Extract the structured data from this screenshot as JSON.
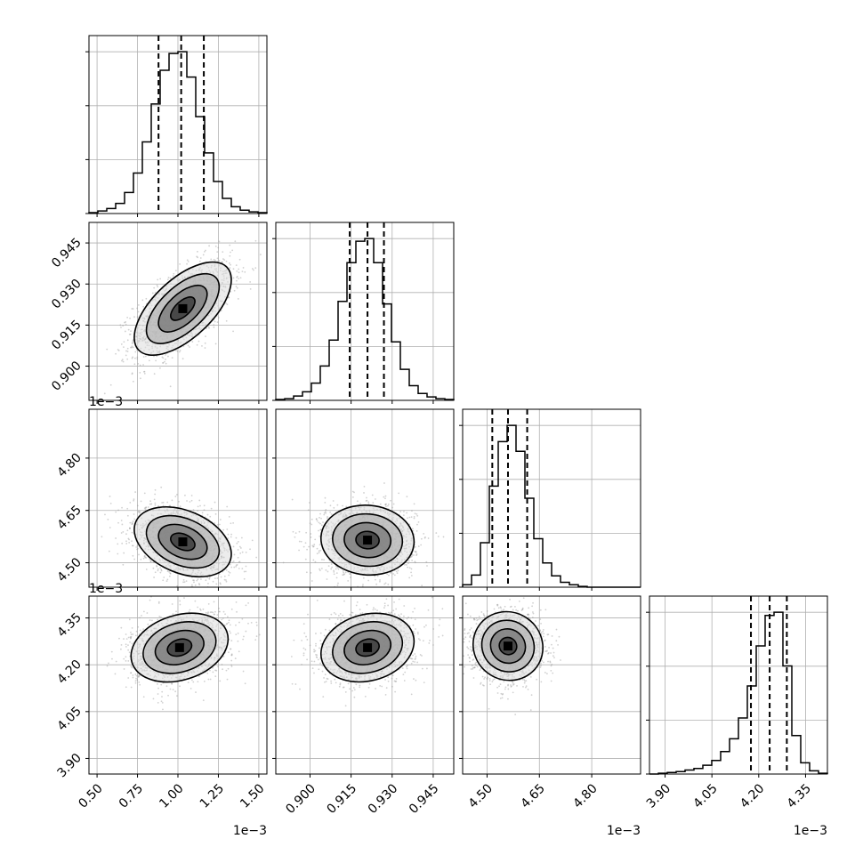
{
  "chart_data": {
    "type": "corner",
    "grid_shown": true,
    "diagonal_ticks_left_unlabeled": true,
    "parameters": [
      {
        "name": "",
        "range": [
          0.45,
          1.55
        ],
        "ticks": [
          0.5,
          0.75,
          1.0,
          1.25,
          1.5
        ],
        "tick_labels": [
          "0.50",
          "0.75",
          "1.00",
          "1.25",
          "1.50"
        ],
        "offset_label": "1e−3",
        "quantiles": [
          0.88,
          1.02,
          1.16
        ],
        "hist": {
          "bin_edges": [
            0.45,
            0.505,
            0.56,
            0.615,
            0.67,
            0.725,
            0.78,
            0.835,
            0.89,
            0.945,
            1.0,
            1.055,
            1.11,
            1.165,
            1.22,
            1.275,
            1.33,
            1.385,
            1.44,
            1.495,
            1.55
          ],
          "counts": [
            1,
            3,
            6,
            12,
            25,
            48,
            85,
            130,
            170,
            190,
            192,
            162,
            115,
            72,
            38,
            18,
            8,
            4,
            2,
            1
          ]
        }
      },
      {
        "name": "",
        "range": [
          0.8875,
          0.9525
        ],
        "ticks": [
          0.9,
          0.915,
          0.93,
          0.945
        ],
        "tick_labels": [
          "0.900",
          "0.915",
          "0.930",
          "0.945"
        ],
        "offset_label": "",
        "quantiles": [
          0.9145,
          0.921,
          0.927
        ],
        "hist": {
          "bin_edges": [
            0.8875,
            0.89075,
            0.894,
            0.89725,
            0.9005,
            0.90375,
            0.907,
            0.91025,
            0.9135,
            0.91675,
            0.92,
            0.92325,
            0.9265,
            0.92975,
            0.933,
            0.93625,
            0.9395,
            0.94275,
            0.946,
            0.94925,
            0.9525
          ],
          "counts": [
            1,
            2,
            5,
            10,
            20,
            40,
            70,
            115,
            160,
            185,
            188,
            160,
            112,
            68,
            36,
            17,
            8,
            4,
            2,
            1
          ]
        }
      },
      {
        "name": "",
        "range": [
          4.43,
          4.94
        ],
        "ticks": [
          4.5,
          4.65,
          4.8
        ],
        "tick_labels": [
          "4.50",
          "4.65",
          "4.80"
        ],
        "offset_label": "1e−3",
        "quantiles": [
          4.515,
          4.56,
          4.615
        ],
        "hist": {
          "bin_edges": [
            4.43,
            4.4555,
            4.481,
            4.5065,
            4.532,
            4.5575,
            4.583,
            4.6085,
            4.634,
            4.6595,
            4.685,
            4.7105,
            4.736,
            4.7615,
            4.787,
            4.8125,
            4.838,
            4.8635,
            4.889,
            4.9145,
            4.94
          ],
          "counts": [
            3,
            15,
            55,
            125,
            180,
            200,
            168,
            110,
            60,
            30,
            14,
            6,
            3,
            1,
            0,
            0,
            0,
            0,
            0,
            0
          ]
        }
      },
      {
        "name": "",
        "range": [
          3.85,
          4.42
        ],
        "ticks": [
          3.9,
          4.05,
          4.2,
          4.35
        ],
        "tick_labels": [
          "3.90",
          "4.05",
          "4.20",
          "4.35"
        ],
        "offset_label": "1e−3",
        "quantiles": [
          4.175,
          4.235,
          4.29
        ],
        "hist": {
          "bin_edges": [
            3.85,
            3.8785,
            3.907,
            3.9355,
            3.964,
            3.9925,
            4.021,
            4.0495,
            4.078,
            4.1065,
            4.135,
            4.1635,
            4.192,
            4.2205,
            4.249,
            4.2775,
            4.306,
            4.3345,
            4.363,
            4.3915,
            4.42
          ],
          "counts": [
            0,
            1,
            2,
            3,
            5,
            7,
            11,
            17,
            28,
            44,
            70,
            110,
            160,
            198,
            202,
            135,
            48,
            14,
            4,
            1
          ]
        }
      }
    ],
    "pairs": [
      {
        "x": 0,
        "y": 1,
        "center": [
          1.03,
          0.921
        ],
        "sigma": [
          0.15,
          0.0085
        ],
        "rho": 0.62
      },
      {
        "x": 0,
        "y": 2,
        "center": [
          1.03,
          4.56
        ],
        "sigma": [
          0.15,
          0.05
        ],
        "rho": -0.35
      },
      {
        "x": 1,
        "y": 2,
        "center": [
          0.921,
          4.565
        ],
        "sigma": [
          0.0085,
          0.05
        ],
        "rho": -0.05
      },
      {
        "x": 0,
        "y": 3,
        "center": [
          1.01,
          4.255
        ],
        "sigma": [
          0.15,
          0.055
        ],
        "rho": 0.25
      },
      {
        "x": 1,
        "y": 3,
        "center": [
          0.921,
          4.255
        ],
        "sigma": [
          0.0085,
          0.055
        ],
        "rho": 0.18
      },
      {
        "x": 2,
        "y": 3,
        "center": [
          4.56,
          4.26
        ],
        "sigma": [
          0.05,
          0.055
        ],
        "rho": -0.05
      }
    ],
    "contour_levels_sigma": [
      0.5,
      1.0,
      1.5,
      2.0
    ]
  }
}
